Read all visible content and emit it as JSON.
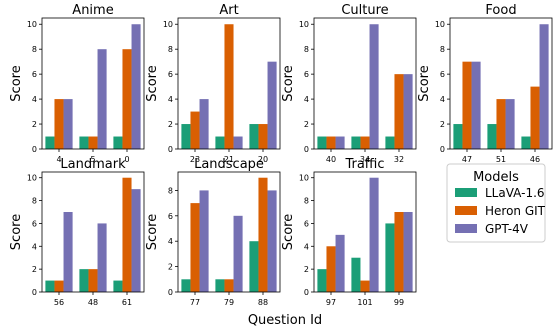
{
  "figure": {
    "xlabel": "Question Id",
    "ylabel": "Score"
  },
  "legend": {
    "title": "Models",
    "placement": "bottom-right"
  },
  "colors": {
    "LLaVA-1.6": "#1b9e77",
    "Heron GIT": "#d95f02",
    "GPT-4V": "#7570b3"
  },
  "chart_data": [
    {
      "type": "bar",
      "title": "Anime",
      "categories": [
        "4",
        "5",
        "0"
      ],
      "series": [
        {
          "name": "LLaVA-1.6",
          "values": [
            1,
            1,
            1
          ]
        },
        {
          "name": "Heron GIT",
          "values": [
            4,
            1,
            8
          ]
        },
        {
          "name": "GPT-4V",
          "values": [
            4,
            8,
            10
          ]
        }
      ],
      "ylabel": "Score",
      "ylim": [
        0,
        10.5
      ],
      "yticks": [
        0,
        2,
        4,
        6,
        8,
        10
      ]
    },
    {
      "type": "bar",
      "title": "Art",
      "categories": [
        "23",
        "21",
        "20"
      ],
      "series": [
        {
          "name": "LLaVA-1.6",
          "values": [
            2,
            1,
            2
          ]
        },
        {
          "name": "Heron GIT",
          "values": [
            3,
            10,
            2
          ]
        },
        {
          "name": "GPT-4V",
          "values": [
            4,
            1,
            7
          ]
        }
      ],
      "ylabel": "Score",
      "ylim": [
        0,
        10.5
      ],
      "yticks": [
        0,
        2,
        4,
        6,
        8,
        10
      ]
    },
    {
      "type": "bar",
      "title": "Culture",
      "categories": [
        "40",
        "34",
        "32"
      ],
      "series": [
        {
          "name": "LLaVA-1.6",
          "values": [
            1,
            1,
            1
          ]
        },
        {
          "name": "Heron GIT",
          "values": [
            1,
            1,
            6
          ]
        },
        {
          "name": "GPT-4V",
          "values": [
            1,
            10,
            6
          ]
        }
      ],
      "ylabel": "Score",
      "ylim": [
        0,
        10.5
      ],
      "yticks": [
        0,
        2,
        4,
        6,
        8,
        10
      ]
    },
    {
      "type": "bar",
      "title": "Food",
      "categories": [
        "47",
        "51",
        "46"
      ],
      "series": [
        {
          "name": "LLaVA-1.6",
          "values": [
            2,
            2,
            1
          ]
        },
        {
          "name": "Heron GIT",
          "values": [
            7,
            4,
            5
          ]
        },
        {
          "name": "GPT-4V",
          "values": [
            7,
            4,
            10
          ]
        }
      ],
      "ylabel": "Score",
      "ylim": [
        0,
        10.5
      ],
      "yticks": [
        0,
        2,
        4,
        6,
        8,
        10
      ]
    },
    {
      "type": "bar",
      "title": "Landmark",
      "categories": [
        "56",
        "48",
        "61"
      ],
      "series": [
        {
          "name": "LLaVA-1.6",
          "values": [
            1,
            2,
            1
          ]
        },
        {
          "name": "Heron GIT",
          "values": [
            1,
            2,
            10
          ]
        },
        {
          "name": "GPT-4V",
          "values": [
            7,
            6,
            9
          ]
        }
      ],
      "ylabel": "Score",
      "ylim": [
        0,
        10.5
      ],
      "yticks": [
        0,
        2,
        4,
        6,
        8,
        10
      ]
    },
    {
      "type": "bar",
      "title": "Landscape",
      "categories": [
        "77",
        "79",
        "88"
      ],
      "series": [
        {
          "name": "LLaVA-1.6",
          "values": [
            1,
            1,
            4
          ]
        },
        {
          "name": "Heron GIT",
          "values": [
            7,
            1,
            9
          ]
        },
        {
          "name": "GPT-4V",
          "values": [
            8,
            6,
            8
          ]
        }
      ],
      "ylabel": "Score",
      "ylim": [
        0,
        9.45
      ],
      "yticks": [
        0,
        2,
        4,
        6,
        8
      ]
    },
    {
      "type": "bar",
      "title": "Traffic",
      "categories": [
        "97",
        "101",
        "99"
      ],
      "series": [
        {
          "name": "LLaVA-1.6",
          "values": [
            2,
            3,
            6
          ]
        },
        {
          "name": "Heron GIT",
          "values": [
            4,
            1,
            7
          ]
        },
        {
          "name": "GPT-4V",
          "values": [
            5,
            10,
            7
          ]
        }
      ],
      "ylabel": "Score",
      "ylim": [
        0,
        10.5
      ],
      "yticks": [
        0,
        2,
        4,
        6,
        8,
        10
      ]
    }
  ]
}
